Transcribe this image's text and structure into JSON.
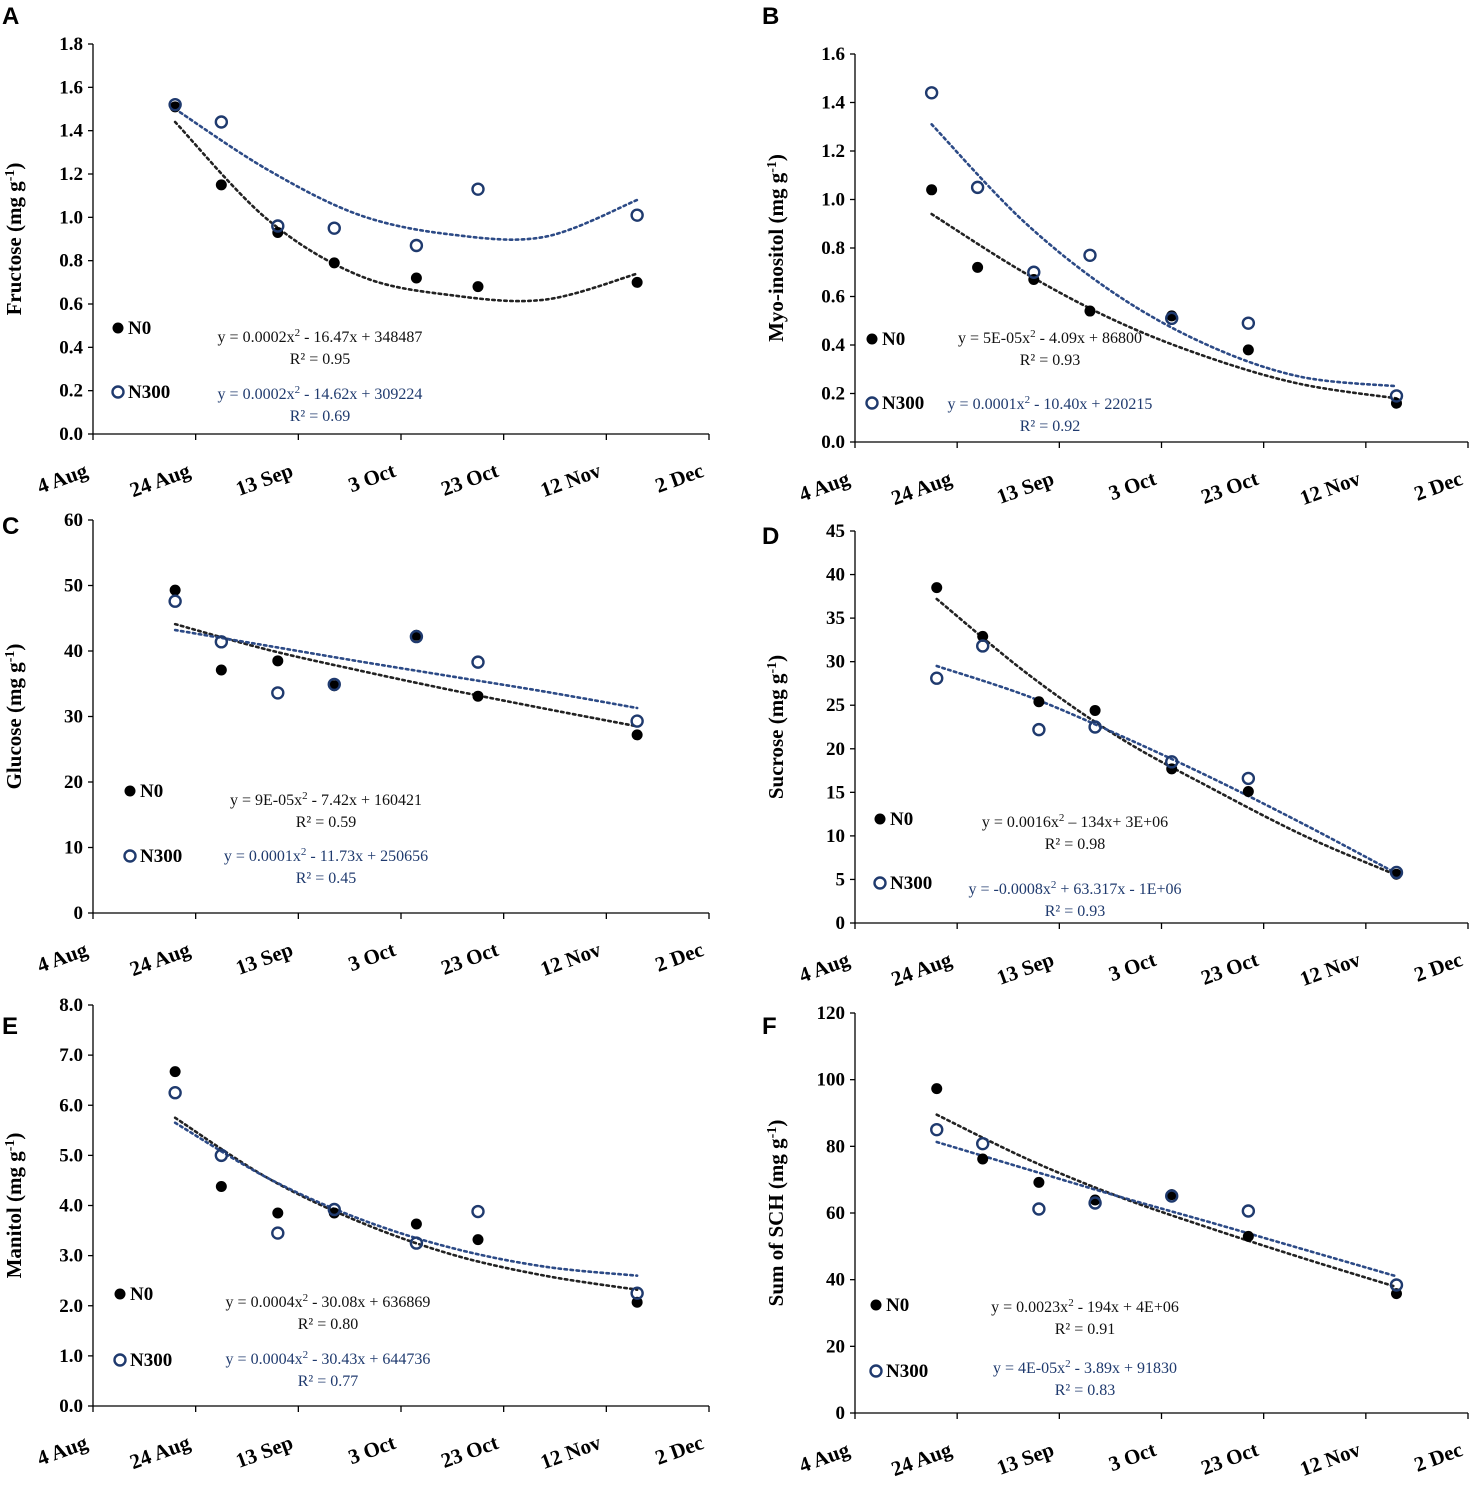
{
  "colors": {
    "n0": "#000000",
    "n300": "#1f3a6e",
    "n0_trend": "#222222",
    "n300_trend": "#2c4a86"
  },
  "x_axis": {
    "ticks": [
      "4 Aug",
      "24 Aug",
      "13 Sep",
      "3 Oct",
      "23 Oct",
      "12 Nov",
      "2 Dec"
    ]
  },
  "chart_data": [
    {
      "type": "scatter",
      "panel": "A",
      "ylabel_main": "Fructose (mg g",
      "ylabel_sup": "-1",
      "ylabel_close": ")",
      "ylim": [
        0,
        1.8
      ],
      "yticks": [
        "0.0",
        "0.2",
        "0.4",
        "0.6",
        "0.8",
        "1.0",
        "1.2",
        "1.4",
        "1.6",
        "1.8"
      ],
      "xlim_days": [
        0,
        120
      ],
      "series": [
        {
          "name": "N0",
          "x_days": [
            16,
            25,
            36,
            47,
            63,
            75,
            106
          ],
          "values": [
            1.51,
            1.15,
            0.93,
            0.79,
            0.72,
            0.68,
            0.7
          ],
          "trend": [
            1.44,
            0.99,
            0.73,
            0.64,
            0.62,
            0.74
          ]
        },
        {
          "name": "N300",
          "x_days": [
            16,
            25,
            36,
            47,
            63,
            75,
            106
          ],
          "values": [
            1.52,
            1.44,
            0.96,
            0.95,
            0.87,
            1.13,
            1.01
          ],
          "trend": [
            1.5,
            1.22,
            1.01,
            0.92,
            0.91,
            1.08
          ]
        }
      ],
      "trend_x_days": [
        16,
        34,
        52,
        70,
        88,
        106
      ],
      "equations": {
        "n0": [
          "y = 0.0002x",
          "2",
          " - 16.47x + 348487"
        ],
        "n0_r2": "R² = 0.95",
        "n300": [
          "y = 0.0002x",
          "2",
          " - 14.62x + 309224"
        ],
        "n300_r2": "R² = 0.69"
      },
      "legend": [
        "N0",
        "N300"
      ]
    },
    {
      "type": "scatter",
      "panel": "B",
      "ylabel_main": "Myo-inositol (mg g",
      "ylabel_sup": "-1",
      "ylabel_close": ")",
      "ylim": [
        0,
        1.6
      ],
      "yticks": [
        "0.0",
        "0.2",
        "0.4",
        "0.6",
        "0.8",
        "1.0",
        "1.2",
        "1.4",
        "1.6"
      ],
      "xlim_days": [
        0,
        120
      ],
      "series": [
        {
          "name": "N0",
          "x_days": [
            15,
            24,
            35,
            46,
            62,
            77,
            106
          ],
          "values": [
            1.04,
            0.72,
            0.67,
            0.54,
            0.52,
            0.38,
            0.16
          ],
          "trend": [
            0.94,
            0.7,
            0.5,
            0.35,
            0.24,
            0.18
          ]
        },
        {
          "name": "N300",
          "x_days": [
            15,
            24,
            35,
            46,
            62,
            77,
            106
          ],
          "values": [
            1.44,
            1.05,
            0.7,
            0.77,
            0.51,
            0.49,
            0.19
          ],
          "trend": [
            1.31,
            0.91,
            0.61,
            0.4,
            0.27,
            0.23
          ]
        }
      ],
      "trend_x_days": [
        15,
        33,
        51,
        69,
        87,
        106
      ],
      "equations": {
        "n0": [
          "y = 5E-05x",
          "2",
          " - 4.09x + 86800"
        ],
        "n0_r2": "R² = 0.93",
        "n300": [
          "y = 0.0001x",
          "2",
          " - 10.40x + 220215"
        ],
        "n300_r2": "R² = 0.92"
      },
      "legend": [
        "N0",
        "N300"
      ]
    },
    {
      "type": "scatter",
      "panel": "C",
      "ylabel_main": "Glucose (mg g",
      "ylabel_sup": "-1",
      "ylabel_close": ")",
      "ylim": [
        0,
        60
      ],
      "yticks": [
        "0",
        "10",
        "20",
        "30",
        "40",
        "50",
        "60"
      ],
      "xlim_days": [
        0,
        120
      ],
      "series": [
        {
          "name": "N0",
          "x_days": [
            16,
            25,
            36,
            47,
            63,
            75,
            106
          ],
          "values": [
            49.3,
            37.1,
            38.5,
            34.7,
            42.4,
            33.1,
            27.2
          ],
          "trend": [
            44.1,
            40.2,
            37.0,
            34.0,
            31.2,
            28.5
          ]
        },
        {
          "name": "N300",
          "x_days": [
            16,
            25,
            36,
            47,
            63,
            75,
            106
          ],
          "values": [
            47.6,
            41.4,
            33.6,
            34.9,
            42.2,
            38.3,
            29.3
          ],
          "trend": [
            43.2,
            40.8,
            38.4,
            36.1,
            33.8,
            31.3
          ]
        }
      ],
      "trend_x_days": [
        16,
        34,
        52,
        70,
        88,
        106
      ],
      "equations": {
        "n0": [
          "y = 9E-05x",
          "2",
          " - 7.42x + 160421"
        ],
        "n0_r2": "R² = 0.59",
        "n300": [
          "y = 0.0001x",
          "2",
          " - 11.73x + 250656"
        ],
        "n300_r2": "R² = 0.45"
      },
      "legend": [
        "N0",
        "N300"
      ]
    },
    {
      "type": "scatter",
      "panel": "D",
      "ylabel_main": "Sucrose (mg g",
      "ylabel_sup": "-1",
      "ylabel_close": ")",
      "ylim": [
        0,
        45
      ],
      "yticks": [
        "0",
        "5",
        "10",
        "15",
        "20",
        "25",
        "30",
        "35",
        "40",
        "45"
      ],
      "xlim_days": [
        0,
        120
      ],
      "series": [
        {
          "name": "N0",
          "x_days": [
            16,
            25,
            36,
            47,
            62,
            77,
            106
          ],
          "values": [
            38.5,
            32.9,
            25.4,
            24.4,
            17.7,
            15.1,
            5.6
          ],
          "trend": [
            37.2,
            28.5,
            21.2,
            15.4,
            10.0,
            5.5
          ]
        },
        {
          "name": "N300",
          "x_days": [
            16,
            25,
            36,
            47,
            62,
            77,
            106
          ],
          "values": [
            28.1,
            31.8,
            22.2,
            22.5,
            18.5,
            16.6,
            5.8
          ],
          "trend": [
            29.5,
            26.0,
            21.5,
            16.6,
            11.3,
            5.7
          ]
        }
      ],
      "trend_x_days": [
        16,
        34,
        52,
        70,
        88,
        106
      ],
      "equations": {
        "n0": [
          "y = 0.0016x",
          "2",
          " – 134x+ 3E+06"
        ],
        "n0_r2": "R² = 0.98",
        "n300": [
          "y = -0.0008x",
          "2",
          " + 63.317x - 1E+06"
        ],
        "n300_r2": "R² = 0.93"
      },
      "legend": [
        "N0",
        "N300"
      ]
    },
    {
      "type": "scatter",
      "panel": "E",
      "ylabel_main": "Manitol (mg g",
      "ylabel_sup": "-1",
      "ylabel_close": ")",
      "ylim": [
        0,
        8
      ],
      "yticks": [
        "0.0",
        "1.0",
        "2.0",
        "3.0",
        "4.0",
        "5.0",
        "6.0",
        "7.0",
        "8.0"
      ],
      "xlim_days": [
        0,
        120
      ],
      "series": [
        {
          "name": "N0",
          "x_days": [
            16,
            25,
            36,
            47,
            63,
            75,
            106
          ],
          "values": [
            6.67,
            4.38,
            3.85,
            3.85,
            3.63,
            3.32,
            2.07
          ],
          "trend": [
            5.75,
            4.55,
            3.67,
            3.02,
            2.6,
            2.32
          ]
        },
        {
          "name": "N300",
          "x_days": [
            16,
            25,
            36,
            47,
            63,
            75,
            106
          ],
          "values": [
            6.25,
            5.0,
            3.45,
            3.92,
            3.25,
            3.88,
            2.25
          ],
          "trend": [
            5.65,
            4.55,
            3.73,
            3.15,
            2.78,
            2.6
          ]
        }
      ],
      "trend_x_days": [
        16,
        34,
        52,
        70,
        88,
        106
      ],
      "equations": {
        "n0": [
          "y = 0.0004x",
          "2",
          " - 30.08x + 636869"
        ],
        "n0_r2": "R² = 0.80",
        "n300": [
          "y = 0.0004x",
          "2",
          " - 30.43x + 644736"
        ],
        "n300_r2": "R² = 0.77"
      },
      "legend": [
        "N0",
        "N300"
      ]
    },
    {
      "type": "scatter",
      "panel": "F",
      "ylabel_main": "Sum of SCH (mg g",
      "ylabel_sup": "-1",
      "ylabel_close": ")",
      "ylim": [
        0,
        120
      ],
      "yticks": [
        "0",
        "20",
        "40",
        "60",
        "80",
        "100",
        "120"
      ],
      "xlim_days": [
        0,
        120
      ],
      "series": [
        {
          "name": "N0",
          "x_days": [
            16,
            25,
            36,
            47,
            62,
            77,
            106
          ],
          "values": [
            97.3,
            76.2,
            69.2,
            63.9,
            65.5,
            53.0,
            35.8
          ],
          "trend": [
            89.5,
            76.0,
            64.7,
            55.2,
            46.3,
            37.8
          ]
        },
        {
          "name": "N300",
          "x_days": [
            16,
            25,
            36,
            47,
            62,
            77,
            106
          ],
          "values": [
            85.0,
            80.8,
            61.2,
            63.0,
            65.1,
            60.6,
            38.4
          ],
          "trend": [
            81.3,
            73.0,
            64.8,
            57.0,
            49.0,
            41.0
          ]
        }
      ],
      "trend_x_days": [
        16,
        34,
        52,
        70,
        88,
        106
      ],
      "equations": {
        "n0": [
          "y = 0.0023x",
          "2",
          " - 194x + 4E+06"
        ],
        "n0_r2": "R² = 0.91",
        "n300": [
          "y = 4E-05x",
          "2",
          " - 3.89x + 91830"
        ],
        "n300_r2": "R² = 0.83"
      },
      "legend": [
        "N0",
        "N300"
      ]
    }
  ]
}
